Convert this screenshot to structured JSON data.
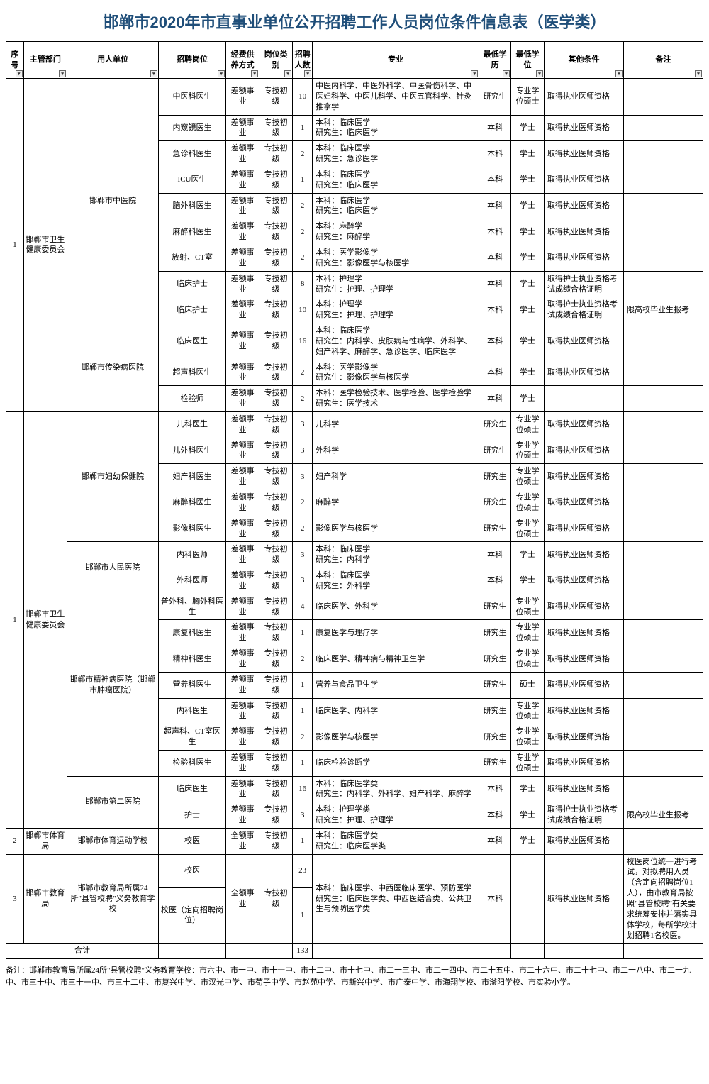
{
  "title": "邯郸市2020年市直事业单位公开招聘工作人员岗位条件信息表（医学类）",
  "columns": [
    "序号",
    "主管部门",
    "用人单位",
    "招聘岗位",
    "经费供养方式",
    "岗位类别",
    "招聘人数",
    "专业",
    "最低学历",
    "最低学位",
    "其他条件",
    "备注"
  ],
  "total_label": "合计",
  "total_num": "133",
  "footnote": "备注：邯郸市教育局所属24所\"县管校聘\"义务教育学校：市六中、市十中、市十一中、市十二中、市十七中、市二十三中、市二十四中、市二十五中、市二十六中、市二十七中、市二十八中、市二十九中、市三十中、市三十一中、市三十二中、市复兴中学、市汉光中学、市荀子中学、市赵苑中学、市新兴中学、市广泰中学、市海翔学校、市滏阳学校、市实验小学。",
  "rows": [
    {
      "xh": "1",
      "xh_span": 12,
      "dept": "邯郸市卫生健康委员会",
      "dept_span": 12,
      "unit": "邯郸市中医院",
      "unit_span": 9,
      "pos": "中医科医生",
      "fund": "差额事业",
      "lvl": "专技初级",
      "num": "10",
      "maj": "中医内科学、中医外科学、中医骨伤科学、中医妇科学、中医儿科学、中医五官科学、针灸推拿学",
      "edu": "研究生",
      "deg": "专业学位硕士",
      "oth": "取得执业医师资格",
      "note": ""
    },
    {
      "pos": "内窥镜医生",
      "fund": "差额事业",
      "lvl": "专技初级",
      "num": "1",
      "maj": "本科：临床医学\n研究生：临床医学",
      "edu": "本科",
      "deg": "学士",
      "oth": "取得执业医师资格",
      "note": ""
    },
    {
      "pos": "急诊科医生",
      "fund": "差额事业",
      "lvl": "专技初级",
      "num": "2",
      "maj": "本科：临床医学\n研究生：急诊医学",
      "edu": "本科",
      "deg": "学士",
      "oth": "取得执业医师资格",
      "note": ""
    },
    {
      "pos": "ICU医生",
      "fund": "差额事业",
      "lvl": "专技初级",
      "num": "1",
      "maj": "本科：临床医学\n研究生：临床医学",
      "edu": "本科",
      "deg": "学士",
      "oth": "取得执业医师资格",
      "note": ""
    },
    {
      "pos": "脑外科医生",
      "fund": "差额事业",
      "lvl": "专技初级",
      "num": "2",
      "maj": "本科：临床医学\n研究生：临床医学",
      "edu": "本科",
      "deg": "学士",
      "oth": "取得执业医师资格",
      "note": ""
    },
    {
      "pos": "麻醉科医生",
      "fund": "差额事业",
      "lvl": "专技初级",
      "num": "2",
      "maj": "本科：麻醉学\n研究生：麻醉学",
      "edu": "本科",
      "deg": "学士",
      "oth": "取得执业医师资格",
      "note": ""
    },
    {
      "pos": "放射、CT室",
      "fund": "差额事业",
      "lvl": "专技初级",
      "num": "2",
      "maj": "本科：医学影像学\n研究生：影像医学与核医学",
      "edu": "本科",
      "deg": "学士",
      "oth": "取得执业医师资格",
      "note": ""
    },
    {
      "pos": "临床护士",
      "fund": "差额事业",
      "lvl": "专技初级",
      "num": "8",
      "maj": "本科：护理学\n研究生：护理、护理学",
      "edu": "本科",
      "deg": "学士",
      "oth": "取得护士执业资格考试成绩合格证明",
      "note": ""
    },
    {
      "pos": "临床护士",
      "fund": "差额事业",
      "lvl": "专技初级",
      "num": "10",
      "maj": "本科：护理学\n研究生：护理、护理学",
      "edu": "本科",
      "deg": "学士",
      "oth": "取得护士执业资格考试成绩合格证明",
      "note": "限高校毕业生报考"
    },
    {
      "unit": "邯郸市传染病医院",
      "unit_span": 3,
      "pos": "临床医生",
      "fund": "差额事业",
      "lvl": "专技初级",
      "num": "16",
      "maj": "本科：临床医学\n研究生：内科学、皮肤病与性病学、外科学、妇产科学、麻醉学、急诊医学、临床医学",
      "edu": "本科",
      "deg": "学士",
      "oth": "取得执业医师资格",
      "note": ""
    },
    {
      "pos": "超声科医生",
      "fund": "差额事业",
      "lvl": "专技初级",
      "num": "2",
      "maj": "本科：医学影像学\n研究生：影像医学与核医学",
      "edu": "本科",
      "deg": "学士",
      "oth": "取得执业医师资格",
      "note": ""
    },
    {
      "pos": "检验师",
      "fund": "差额事业",
      "lvl": "专技初级",
      "num": "2",
      "maj": "本科：医学检验技术、医学检验、医学检验学\n研究生：医学技术",
      "edu": "本科",
      "deg": "学士",
      "oth": "",
      "note": ""
    },
    {
      "xh": "1",
      "xh_span": 16,
      "dept": "邯郸市卫生健康委员会",
      "dept_span": 16,
      "unit": "邯郸市妇幼保健院",
      "unit_span": 5,
      "pos": "儿科医生",
      "fund": "差额事业",
      "lvl": "专技初级",
      "num": "3",
      "maj": "儿科学",
      "edu": "研究生",
      "deg": "专业学位硕士",
      "oth": "取得执业医师资格",
      "note": ""
    },
    {
      "pos": "儿外科医生",
      "fund": "差额事业",
      "lvl": "专技初级",
      "num": "3",
      "maj": "外科学",
      "edu": "研究生",
      "deg": "专业学位硕士",
      "oth": "取得执业医师资格",
      "note": ""
    },
    {
      "pos": "妇产科医生",
      "fund": "差额事业",
      "lvl": "专技初级",
      "num": "3",
      "maj": "妇产科学",
      "edu": "研究生",
      "deg": "专业学位硕士",
      "oth": "取得执业医师资格",
      "note": ""
    },
    {
      "pos": "麻醉科医生",
      "fund": "差额事业",
      "lvl": "专技初级",
      "num": "2",
      "maj": "麻醉学",
      "edu": "研究生",
      "deg": "专业学位硕士",
      "oth": "取得执业医师资格",
      "note": ""
    },
    {
      "pos": "影像科医生",
      "fund": "差额事业",
      "lvl": "专技初级",
      "num": "2",
      "maj": "影像医学与核医学",
      "edu": "研究生",
      "deg": "专业学位硕士",
      "oth": "取得执业医师资格",
      "note": ""
    },
    {
      "unit": "邯郸市人民医院",
      "unit_span": 2,
      "pos": "内科医师",
      "fund": "差额事业",
      "lvl": "专技初级",
      "num": "3",
      "maj": "本科：临床医学\n研究生：内科学",
      "edu": "本科",
      "deg": "学士",
      "oth": "取得执业医师资格",
      "note": ""
    },
    {
      "pos": "外科医师",
      "fund": "差额事业",
      "lvl": "专技初级",
      "num": "3",
      "maj": "本科：临床医学\n研究生：外科学",
      "edu": "本科",
      "deg": "学士",
      "oth": "取得执业医师资格",
      "note": ""
    },
    {
      "unit": "邯郸市精神病医院（邯郸市肿瘤医院）",
      "unit_span": 7,
      "pos": "普外科、胸外科医生",
      "fund": "差额事业",
      "lvl": "专技初级",
      "num": "4",
      "maj": "临床医学、外科学",
      "edu": "研究生",
      "deg": "专业学位硕士",
      "oth": "取得执业医师资格",
      "note": ""
    },
    {
      "pos": "康复科医生",
      "fund": "差额事业",
      "lvl": "专技初级",
      "num": "1",
      "maj": "康复医学与理疗学",
      "edu": "研究生",
      "deg": "专业学位硕士",
      "oth": "取得执业医师资格",
      "note": ""
    },
    {
      "pos": "精神科医生",
      "fund": "差额事业",
      "lvl": "专技初级",
      "num": "2",
      "maj": "临床医学、精神病与精神卫生学",
      "edu": "研究生",
      "deg": "专业学位硕士",
      "oth": "取得执业医师资格",
      "note": ""
    },
    {
      "pos": "营养科医生",
      "fund": "差额事业",
      "lvl": "专技初级",
      "num": "1",
      "maj": "营养与食品卫生学",
      "edu": "研究生",
      "deg": "硕士",
      "oth": "取得执业医师资格",
      "note": ""
    },
    {
      "pos": "内科医生",
      "fund": "差额事业",
      "lvl": "专技初级",
      "num": "1",
      "maj": "临床医学、内科学",
      "edu": "研究生",
      "deg": "专业学位硕士",
      "oth": "取得执业医师资格",
      "note": ""
    },
    {
      "pos": "超声科、CT室医生",
      "fund": "差额事业",
      "lvl": "专技初级",
      "num": "2",
      "maj": "影像医学与核医学",
      "edu": "研究生",
      "deg": "专业学位硕士",
      "oth": "取得执业医师资格",
      "note": ""
    },
    {
      "pos": "检验科医生",
      "fund": "差额事业",
      "lvl": "专技初级",
      "num": "1",
      "maj": "临床检验诊断学",
      "edu": "研究生",
      "deg": "专业学位硕士",
      "oth": "取得执业医师资格",
      "note": ""
    },
    {
      "unit": "邯郸市第二医院",
      "unit_span": 2,
      "pos": "临床医生",
      "fund": "差额事业",
      "lvl": "专技初级",
      "num": "16",
      "maj": "本科：临床医学类\n研究生：内科学、外科学、妇产科学、麻醉学",
      "edu": "本科",
      "deg": "学士",
      "oth": "取得执业医师资格",
      "note": ""
    },
    {
      "pos": "护士",
      "fund": "差额事业",
      "lvl": "专技初级",
      "num": "3",
      "maj": "本科：护理学类\n研究生：护理、护理学",
      "edu": "本科",
      "deg": "学士",
      "oth": "取得护士执业资格考试成绩合格证明",
      "note": "限高校毕业生报考"
    },
    {
      "xh": "2",
      "xh_span": 1,
      "dept": "邯郸市体育局",
      "dept_span": 1,
      "unit": "邯郸市体育运动学校",
      "unit_span": 1,
      "pos": "校医",
      "fund": "全额事业",
      "lvl": "专技初级",
      "num": "1",
      "maj": "本科：临床医学类\n研究生：临床医学类",
      "edu": "本科",
      "deg": "学士",
      "oth": "取得执业医师资格",
      "note": ""
    },
    {
      "xh": "3",
      "xh_span": 2,
      "dept": "邯郸市教育局",
      "dept_span": 2,
      "unit": "邯郸市教育局所属24所\"县管校聘\"义务教育学校",
      "unit_span": 2,
      "pos": "校医",
      "fund": "全额事业",
      "fund_span": 2,
      "lvl": "专技初级",
      "lvl_span": 2,
      "num": "23",
      "maj": "本科：临床医学、中西医临床医学、预防医学\n研究生：临床医学类、中西医结合类、公共卫生与预防医学类",
      "maj_span": 2,
      "edu": "本科",
      "edu_span": 2,
      "deg": "",
      "deg_span": 2,
      "oth": "取得执业医师资格",
      "oth_span": 2,
      "note": "校医岗位统一进行考试，对拟聘用人员（含定向招聘岗位1人），由市教育局按照\"县管校聘\"有关要求统筹安排并落实具体学校，每所学校计划招聘1名校医。",
      "note_span": 2
    },
    {
      "pos": "校医（定向招聘岗位）",
      "num": "1"
    }
  ],
  "styling": {
    "title_color": "#1f4e79",
    "border_color": "#000000",
    "font_body": 11,
    "font_title": 22
  }
}
